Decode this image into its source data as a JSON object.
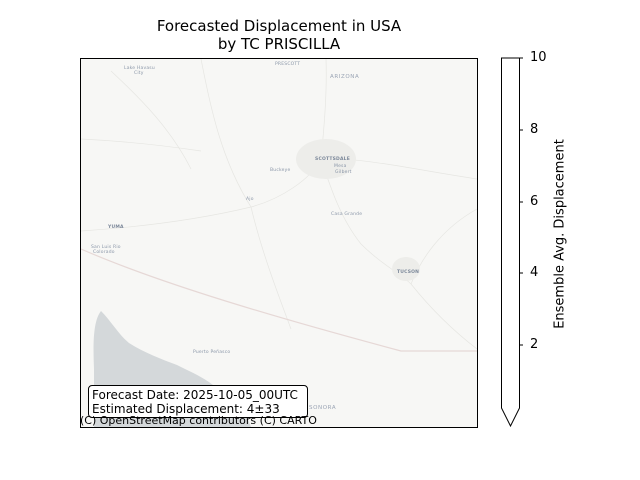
{
  "title_line1": "Forecasted Displacement in USA",
  "title_line2": "by TC PRISCILLA",
  "map": {
    "tile_provider": "CARTO light basemap",
    "land_color": "#f7f7f5",
    "water_color": "#d4d8da",
    "places": {
      "lake_havasu_1": "Lake Havasu",
      "lake_havasu_2": "City",
      "prescott": "PRESCOTT",
      "arizona": "ARIZONA",
      "scottsdale": "SCOTTSDALE",
      "mesa": "Mesa",
      "gilbert": "Gilbert",
      "buckeye": "Buckeye",
      "yuma": "YUMA",
      "san_luis_1": "San Luis Rio",
      "san_luis_2": "Colorado",
      "casa_grande": "Casa Grande",
      "tucson": "TUCSON",
      "puerto_penasco": "Puerto Peñasco",
      "ajo": "Ajo",
      "sonora": "SONORA"
    }
  },
  "info_box": {
    "forecast_date": "Forecast Date: 2025-10-05_00UTC",
    "estimated_displacement": "Estimated Displacement: 4±33"
  },
  "attribution": "(C) OpenStreetMap contributors (C) CARTO",
  "colorbar": {
    "label": "Ensemble Avg. Displacement",
    "ticks": [
      "2",
      "4",
      "6",
      "8",
      "10"
    ],
    "range": [
      0,
      10
    ],
    "extend": "min",
    "fill_color": "#ffffff"
  }
}
